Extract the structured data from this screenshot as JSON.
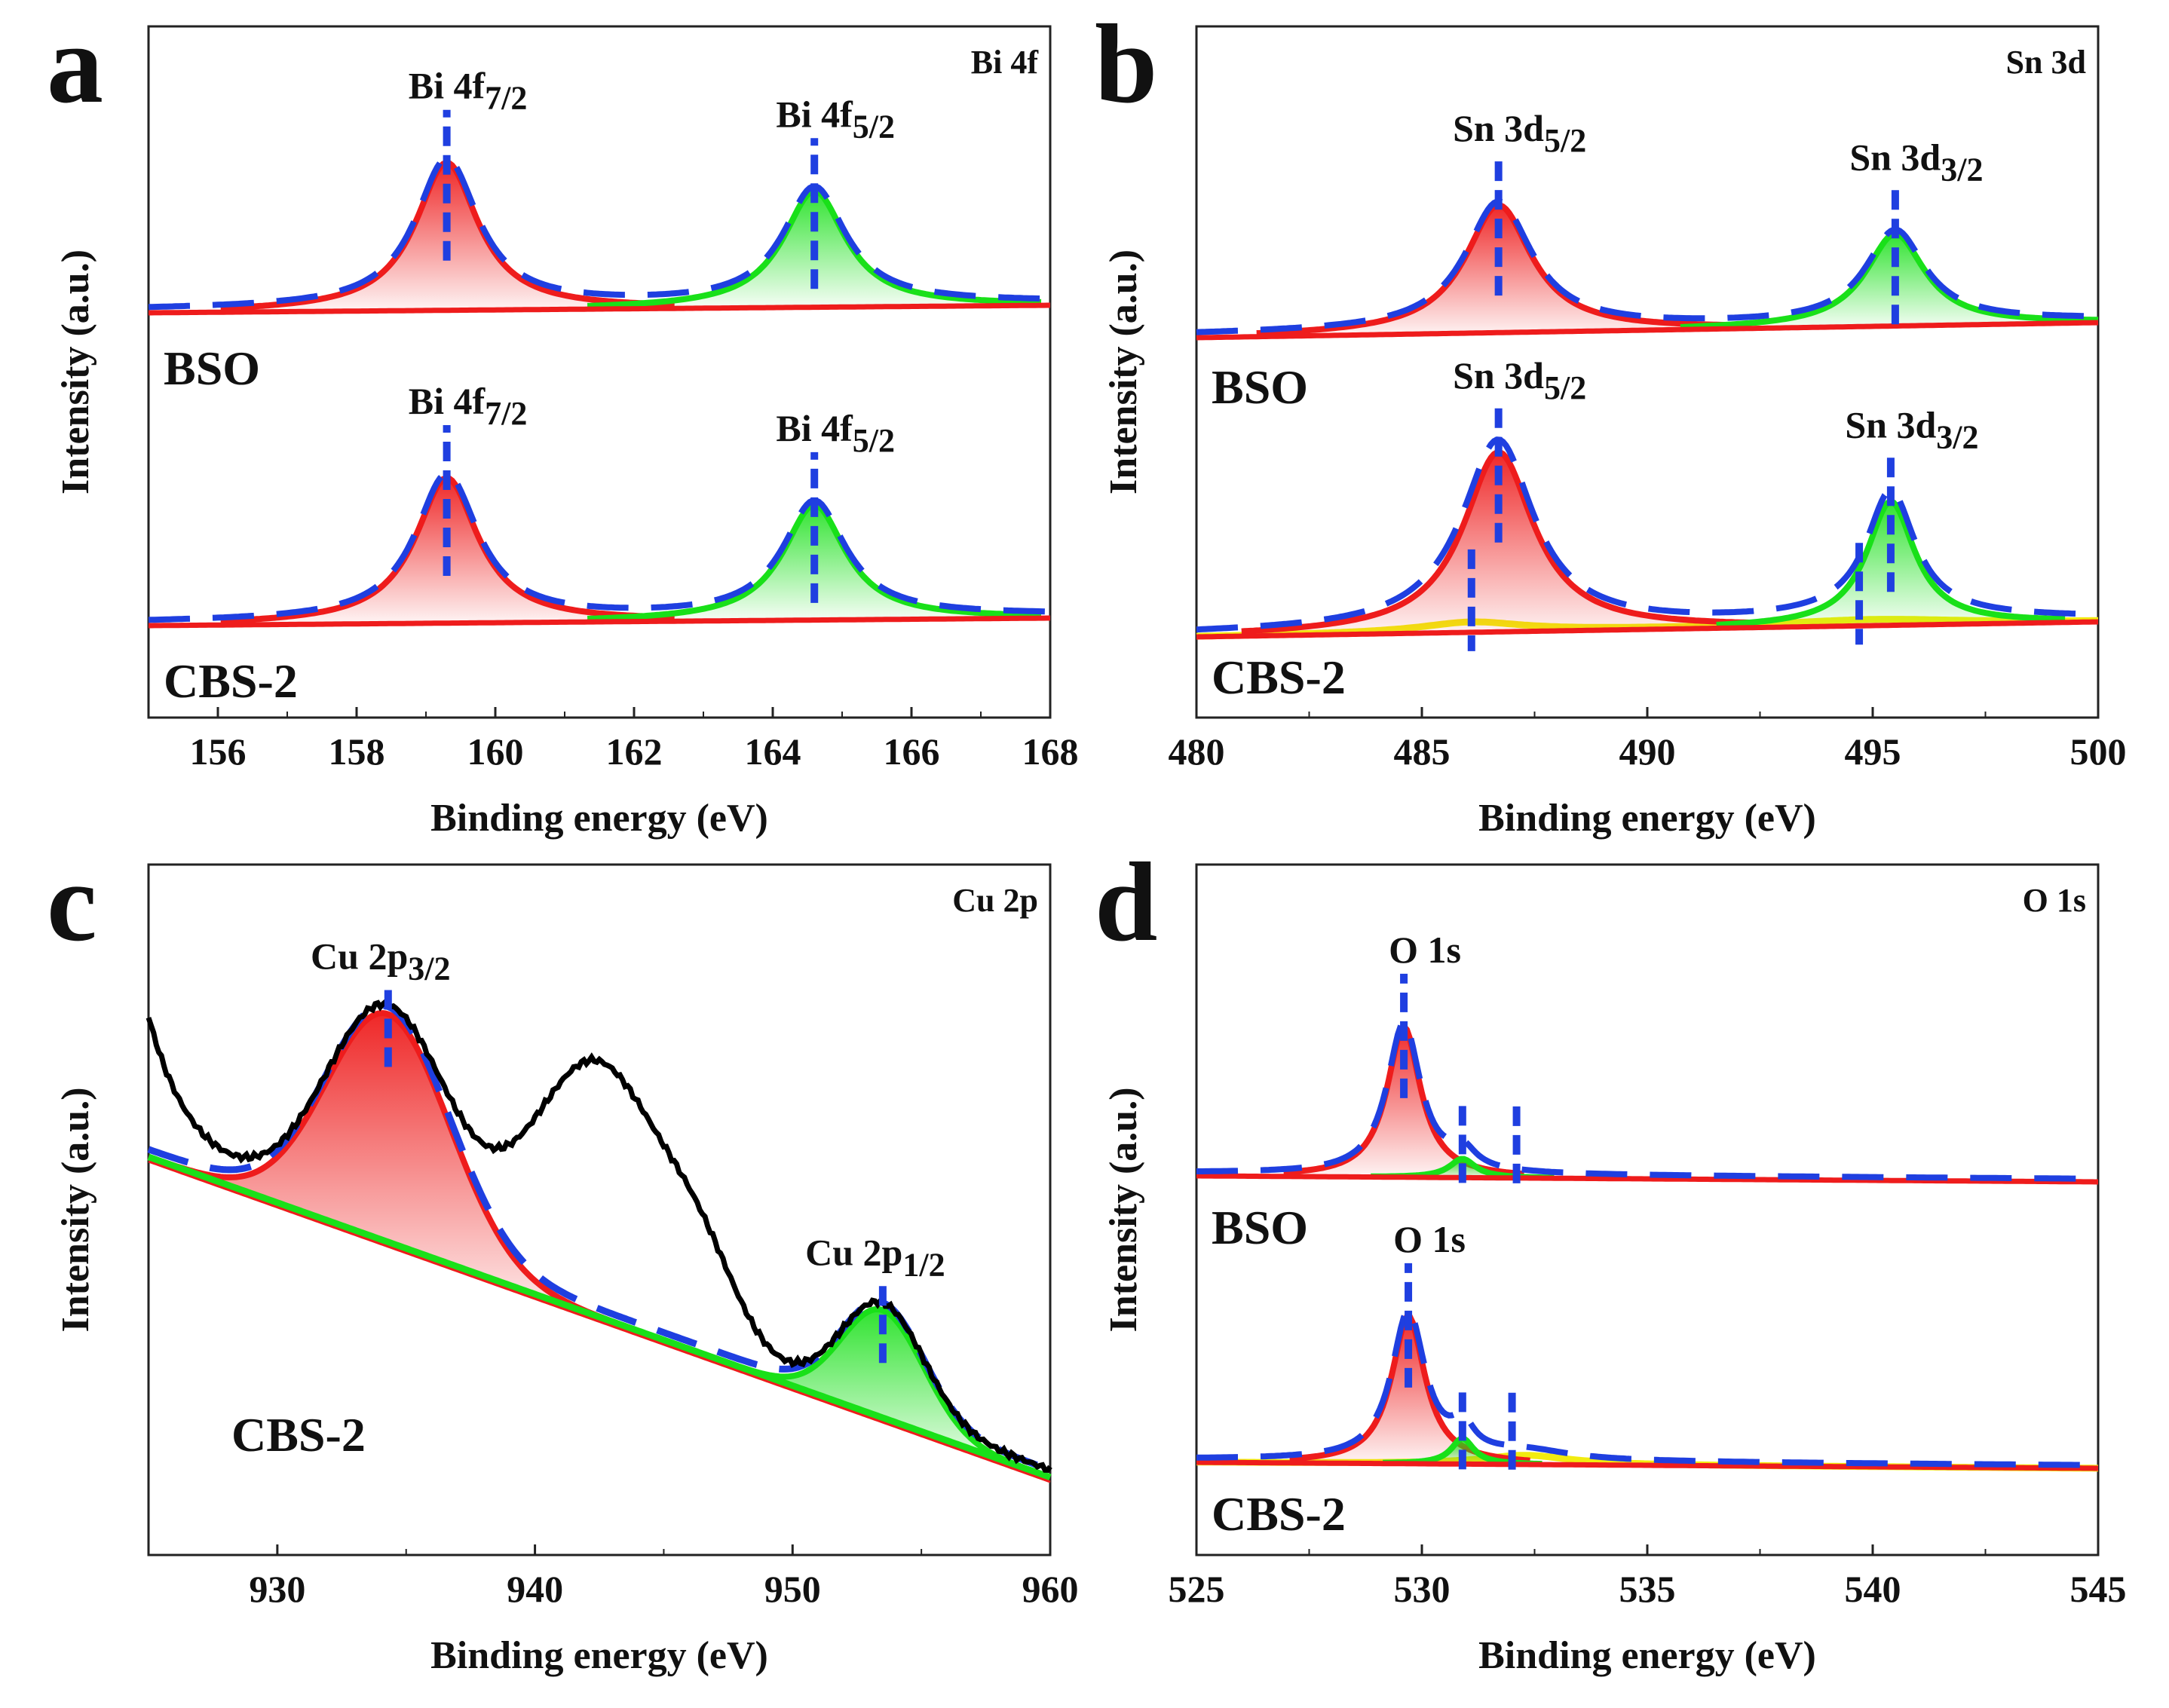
{
  "colors": {
    "bso": "#ee1c1c",
    "cbs": "#7a1a82",
    "fit1": "#ee1c1c",
    "fit2": "#19e019",
    "envelope": "#1f3fe0",
    "raw": "#000000",
    "satellite": "#f2ec10",
    "minor": "#f28c1c"
  },
  "chart_data": [
    {
      "type": "line",
      "panel": "a",
      "element_label": "Bi 4f",
      "xlabel": "Binding energy (eV)",
      "ylabel": "Intensity (a.u.)",
      "xlim": [
        155,
        168
      ],
      "xticks": [
        "156",
        "158",
        "160",
        "162",
        "164",
        "166",
        "168"
      ],
      "grid": false,
      "series": [
        {
          "name": "BSO",
          "sample_label": "BSO",
          "peaks": [
            {
              "label_main": "Bi 4f",
              "label_sub": "7/2",
              "center": 159.3,
              "height": 0.8,
              "width": 0.55
            },
            {
              "label_main": "Bi 4f",
              "label_sub": "5/2",
              "center": 164.6,
              "height": 0.63,
              "width": 0.55
            }
          ]
        },
        {
          "name": "CBS-2",
          "sample_label": "CBS-2",
          "peaks": [
            {
              "label_main": "Bi 4f",
              "label_sub": "7/2",
              "center": 159.3,
              "height": 0.82,
              "width": 0.55
            },
            {
              "label_main": "Bi 4f",
              "label_sub": "5/2",
              "center": 164.6,
              "height": 0.65,
              "width": 0.55
            }
          ]
        }
      ]
    },
    {
      "type": "line",
      "panel": "b",
      "element_label": "Sn 3d",
      "xlabel": "Binding energy (eV)",
      "ylabel": "Intensity (a.u.)",
      "xlim": [
        480,
        500
      ],
      "xticks": [
        "480",
        "485",
        "490",
        "495",
        "500"
      ],
      "grid": false,
      "series": [
        {
          "name": "BSO",
          "sample_label": "BSO",
          "peaks": [
            {
              "label_main": "Sn 3d",
              "label_sub": "5/2",
              "center": 486.7,
              "height": 0.72,
              "width": 0.9
            },
            {
              "label_main": "Sn 3d",
              "label_sub": "3/2",
              "center": 495.5,
              "height": 0.52,
              "width": 0.8
            }
          ]
        },
        {
          "name": "CBS-2",
          "sample_label": "CBS-2",
          "peaks": [
            {
              "label_main": "Sn 3d",
              "label_sub": "5/2",
              "center": 486.7,
              "height": 0.9,
              "width": 0.95
            },
            {
              "label_main": "Sn 3d",
              "label_sub": "3/2",
              "center": 495.4,
              "height": 0.62,
              "width": 0.65
            }
          ]
        }
      ]
    },
    {
      "type": "line",
      "panel": "c",
      "element_label": "Cu 2p",
      "xlabel": "Binding energy (eV)",
      "ylabel": "Intensity (a.u.)",
      "xlim": [
        925,
        960
      ],
      "xticks": [
        "930",
        "940",
        "950",
        "960"
      ],
      "grid": false,
      "series": [
        {
          "name": "CBS-2",
          "sample_label": "CBS-2",
          "peaks": [
            {
              "label_main": "Cu 2p",
              "label_sub": "3/2",
              "center": 934.3,
              "height": 0.72,
              "width": 2.4
            },
            {
              "label_main": "Cu 2p",
              "label_sub": "1/2",
              "center": 953.5,
              "height": 0.34,
              "width": 1.6
            }
          ],
          "satellite_max": {
            "x": 942.5,
            "y": 1.0
          }
        }
      ]
    },
    {
      "type": "line",
      "panel": "d",
      "element_label": "O 1s",
      "xlabel": "Binding energy (eV)",
      "ylabel": "Intensity (a.u.)",
      "xlim": [
        525,
        545
      ],
      "xticks": [
        "525",
        "530",
        "535",
        "540",
        "545"
      ],
      "grid": false,
      "series": [
        {
          "name": "BSO",
          "sample_label": "BSO",
          "peaks": [
            {
              "label_main": "O 1s",
              "label_sub": "",
              "center": 529.6,
              "height": 0.8,
              "width": 0.45
            },
            {
              "label_main": "",
              "label_sub": "",
              "center": 530.9,
              "height": 0.1,
              "width": 0.35
            }
          ],
          "markers": [
            530.9,
            532.1
          ]
        },
        {
          "name": "CBS-2",
          "sample_label": "CBS-2",
          "peaks": [
            {
              "label_main": "O 1s",
              "label_sub": "",
              "center": 529.7,
              "height": 0.8,
              "width": 0.45
            },
            {
              "label_main": "",
              "label_sub": "",
              "center": 530.9,
              "height": 0.14,
              "width": 0.3
            }
          ],
          "markers": [
            530.9,
            532.0
          ]
        }
      ]
    }
  ]
}
